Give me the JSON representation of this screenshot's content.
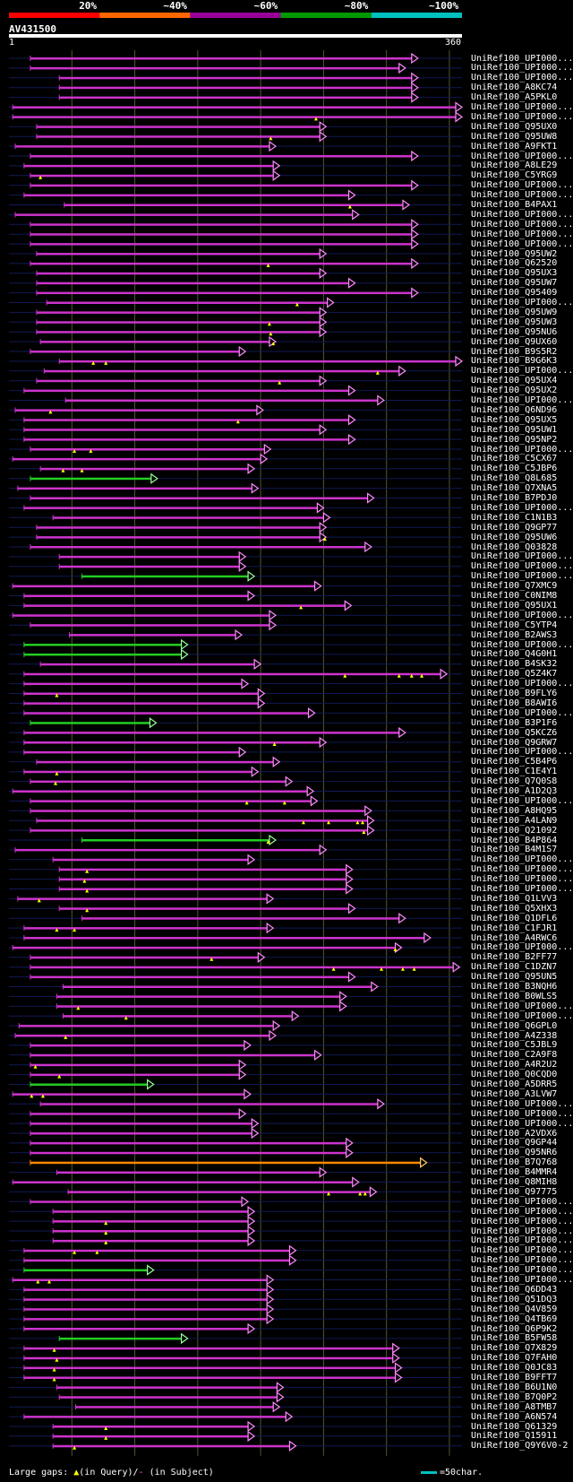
{
  "query": {
    "name": "AV431500",
    "start": "1",
    "end": "360"
  },
  "scale": [
    {
      "label": "20%",
      "color": "#ff0000"
    },
    {
      "label": "~40%",
      "color": "#ff6600"
    },
    {
      "label": "~60%",
      "color": "#990099"
    },
    {
      "label": "~80%",
      "color": "#009900"
    },
    {
      "label": "~100%",
      "color": "#00c0c0"
    }
  ],
  "footer": {
    "left_prefix": "Large gaps: ",
    "query_marker": "▲",
    "query_text": "(in Query)/",
    "subject_marker": "-",
    "subject_text": " (in Subject)",
    "legend_text": "=50char."
  },
  "hits": [
    {
      "id": "UniRef100_UPI000...",
      "s": 17,
      "e": 325,
      "c": "m",
      "tr": []
    },
    {
      "id": "UniRef100_UPI000...",
      "s": 17,
      "e": 315,
      "c": "m",
      "tr": []
    },
    {
      "id": "UniRef100_UPI000...",
      "s": 40,
      "e": 325,
      "c": "m",
      "tr": []
    },
    {
      "id": "UniRef100_A8KC74",
      "s": 40,
      "e": 325,
      "c": "m",
      "tr": []
    },
    {
      "id": "UniRef100_A5PKL0",
      "s": 40,
      "e": 325,
      "c": "m",
      "tr": []
    },
    {
      "id": "UniRef100_UPI000...",
      "s": 3,
      "e": 360,
      "c": "m",
      "tr": []
    },
    {
      "id": "UniRef100_UPI000...",
      "s": 3,
      "e": 360,
      "c": "m",
      "tr": [
        244
      ]
    },
    {
      "id": "UniRef100_Q95UX0",
      "s": 22,
      "e": 252,
      "c": "m",
      "tr": []
    },
    {
      "id": "UniRef100_Q95UW8",
      "s": 22,
      "e": 252,
      "c": "m",
      "tr": [
        208
      ]
    },
    {
      "id": "UniRef100_A9FKT1",
      "s": 5,
      "e": 212,
      "c": "m",
      "tr": []
    },
    {
      "id": "UniRef100_UPI000...",
      "s": 17,
      "e": 325,
      "c": "m",
      "tr": []
    },
    {
      "id": "UniRef100_A8LE29",
      "s": 12,
      "e": 215,
      "c": "m",
      "tr": []
    },
    {
      "id": "UniRef100_C5YRG9",
      "s": 17,
      "e": 215,
      "c": "m",
      "tr": [
        25
      ]
    },
    {
      "id": "UniRef100_UPI000...",
      "s": 17,
      "e": 325,
      "c": "m",
      "tr": []
    },
    {
      "id": "UniRef100_UPI000...",
      "s": 12,
      "e": 275,
      "c": "m",
      "tr": []
    },
    {
      "id": "UniRef100_B4PAX1",
      "s": 44,
      "e": 318,
      "c": "m",
      "tr": [
        271
      ]
    },
    {
      "id": "UniRef100_UPI000...",
      "s": 5,
      "e": 278,
      "c": "m",
      "tr": []
    },
    {
      "id": "UniRef100_UPI000...",
      "s": 17,
      "e": 325,
      "c": "m",
      "tr": []
    },
    {
      "id": "UniRef100_UPI000...",
      "s": 17,
      "e": 325,
      "c": "m",
      "tr": []
    },
    {
      "id": "UniRef100_UPI000...",
      "s": 17,
      "e": 325,
      "c": "m",
      "tr": []
    },
    {
      "id": "UniRef100_Q95UW2",
      "s": 22,
      "e": 252,
      "c": "m",
      "tr": []
    },
    {
      "id": "UniRef100_Q62520",
      "s": 17,
      "e": 325,
      "c": "m",
      "tr": [
        206
      ]
    },
    {
      "id": "UniRef100_Q95UX3",
      "s": 22,
      "e": 252,
      "c": "m",
      "tr": []
    },
    {
      "id": "UniRef100_Q95UW7",
      "s": 22,
      "e": 275,
      "c": "m",
      "tr": []
    },
    {
      "id": "UniRef100_Q95409",
      "s": 22,
      "e": 325,
      "c": "m",
      "tr": []
    },
    {
      "id": "UniRef100_UPI000...",
      "s": 30,
      "e": 258,
      "c": "m",
      "tr": [
        229
      ]
    },
    {
      "id": "UniRef100_Q95UW9",
      "s": 22,
      "e": 252,
      "c": "m",
      "tr": []
    },
    {
      "id": "UniRef100_Q95UW3",
      "s": 22,
      "e": 252,
      "c": "m",
      "tr": [
        207
      ]
    },
    {
      "id": "UniRef100_Q95NU6",
      "s": 22,
      "e": 252,
      "c": "m",
      "tr": [
        208
      ]
    },
    {
      "id": "UniRef100_Q9UX60",
      "s": 25,
      "e": 212,
      "c": "m",
      "tr": [
        210
      ]
    },
    {
      "id": "UniRef100_B9S5R2",
      "s": 17,
      "e": 188,
      "c": "m",
      "tr": []
    },
    {
      "id": "UniRef100_B9G6K3",
      "s": 40,
      "e": 360,
      "c": "m",
      "tr": [
        67,
        77
      ]
    },
    {
      "id": "UniRef100_UPI000...",
      "s": 28,
      "e": 315,
      "c": "m",
      "tr": [
        293
      ]
    },
    {
      "id": "UniRef100_Q95UX4",
      "s": 22,
      "e": 252,
      "c": "m",
      "tr": [
        215
      ]
    },
    {
      "id": "UniRef100_Q95UX2",
      "s": 12,
      "e": 275,
      "c": "m",
      "tr": []
    },
    {
      "id": "UniRef100_UPI000...",
      "s": 45,
      "e": 298,
      "c": "m",
      "tr": []
    },
    {
      "id": "UniRef100_Q6ND96",
      "s": 5,
      "e": 202,
      "c": "m",
      "tr": [
        33
      ]
    },
    {
      "id": "UniRef100_Q95UX5",
      "s": 12,
      "e": 275,
      "c": "m",
      "tr": [
        182
      ]
    },
    {
      "id": "UniRef100_Q95UW1",
      "s": 12,
      "e": 252,
      "c": "m",
      "tr": []
    },
    {
      "id": "UniRef100_Q95NP2",
      "s": 12,
      "e": 275,
      "c": "m",
      "tr": []
    },
    {
      "id": "UniRef100_UPI000...",
      "s": 17,
      "e": 208,
      "c": "m",
      "tr": [
        52,
        65
      ]
    },
    {
      "id": "UniRef100_C5CX67",
      "s": 3,
      "e": 205,
      "c": "m",
      "tr": []
    },
    {
      "id": "UniRef100_C5JBP6",
      "s": 25,
      "e": 195,
      "c": "m",
      "tr": [
        43,
        58
      ]
    },
    {
      "id": "UniRef100_Q8L685",
      "s": 17,
      "e": 118,
      "c": "g",
      "tr": []
    },
    {
      "id": "UniRef100_Q7XNA5",
      "s": 7,
      "e": 198,
      "c": "m",
      "tr": []
    },
    {
      "id": "UniRef100_B7PDJ0",
      "s": 17,
      "e": 290,
      "c": "m",
      "tr": []
    },
    {
      "id": "UniRef100_UPI000...",
      "s": 12,
      "e": 250,
      "c": "m",
      "tr": []
    },
    {
      "id": "UniRef100_C1N1B3",
      "s": 35,
      "e": 255,
      "c": "m",
      "tr": []
    },
    {
      "id": "UniRef100_Q9GP77",
      "s": 22,
      "e": 252,
      "c": "m",
      "tr": []
    },
    {
      "id": "UniRef100_Q95UW6",
      "s": 22,
      "e": 252,
      "c": "m",
      "tr": [
        251
      ]
    },
    {
      "id": "UniRef100_Q03828",
      "s": 17,
      "e": 288,
      "c": "m",
      "tr": []
    },
    {
      "id": "UniRef100_UPI000...",
      "s": 40,
      "e": 188,
      "c": "m",
      "tr": []
    },
    {
      "id": "UniRef100_UPI000...",
      "s": 40,
      "e": 188,
      "c": "m",
      "tr": []
    },
    {
      "id": "UniRef100_UPI000...",
      "s": 58,
      "e": 195,
      "c": "g",
      "tr": []
    },
    {
      "id": "UniRef100_Q7XMC9",
      "s": 3,
      "e": 248,
      "c": "m",
      "tr": []
    },
    {
      "id": "UniRef100_C0NIM8",
      "s": 12,
      "e": 195,
      "c": "m",
      "tr": []
    },
    {
      "id": "UniRef100_Q95UX1",
      "s": 12,
      "e": 272,
      "c": "m",
      "tr": [
        232
      ]
    },
    {
      "id": "UniRef100_UPI000...",
      "s": 3,
      "e": 212,
      "c": "m",
      "tr": []
    },
    {
      "id": "UniRef100_C5YTP4",
      "s": 17,
      "e": 212,
      "c": "m",
      "tr": []
    },
    {
      "id": "UniRef100_B2AWS3",
      "s": 48,
      "e": 185,
      "c": "m",
      "tr": []
    },
    {
      "id": "UniRef100_UPI000...",
      "s": 12,
      "e": 142,
      "c": "g",
      "tr": []
    },
    {
      "id": "UniRef100_Q4G0H1",
      "s": 12,
      "e": 142,
      "c": "g",
      "tr": []
    },
    {
      "id": "UniRef100_B4SK32",
      "s": 25,
      "e": 200,
      "c": "m",
      "tr": []
    },
    {
      "id": "UniRef100_Q5Z4K7",
      "s": 12,
      "e": 348,
      "c": "m",
      "tr": [
        267,
        310,
        320,
        328
      ]
    },
    {
      "id": "UniRef100_UPI000...",
      "s": 12,
      "e": 190,
      "c": "m",
      "tr": []
    },
    {
      "id": "UniRef100_B9FLY6",
      "s": 12,
      "e": 203,
      "c": "m",
      "tr": [
        38
      ]
    },
    {
      "id": "UniRef100_B8AWI6",
      "s": 12,
      "e": 203,
      "c": "m",
      "tr": []
    },
    {
      "id": "UniRef100_UPI000...",
      "s": 12,
      "e": 243,
      "c": "m",
      "tr": []
    },
    {
      "id": "UniRef100_B3P1F6",
      "s": 17,
      "e": 117,
      "c": "g",
      "tr": []
    },
    {
      "id": "UniRef100_Q5KCZ6",
      "s": 12,
      "e": 315,
      "c": "m",
      "tr": []
    },
    {
      "id": "UniRef100_Q9GRW7",
      "s": 12,
      "e": 252,
      "c": "m",
      "tr": [
        211
      ]
    },
    {
      "id": "UniRef100_UPI000...",
      "s": 12,
      "e": 188,
      "c": "m",
      "tr": []
    },
    {
      "id": "UniRef100_C5B4P6",
      "s": 22,
      "e": 215,
      "c": "m",
      "tr": []
    },
    {
      "id": "UniRef100_C1E4Y1",
      "s": 12,
      "e": 198,
      "c": "m",
      "tr": [
        38
      ]
    },
    {
      "id": "UniRef100_Q7Q0S8",
      "s": 17,
      "e": 225,
      "c": "m",
      "tr": [
        37
      ]
    },
    {
      "id": "UniRef100_A1D2Q3",
      "s": 3,
      "e": 242,
      "c": "m",
      "tr": []
    },
    {
      "id": "UniRef100_UPI000...",
      "s": 17,
      "e": 245,
      "c": "m",
      "tr": [
        189,
        219
      ]
    },
    {
      "id": "UniRef100_A8HQ95",
      "s": 17,
      "e": 288,
      "c": "m",
      "tr": []
    },
    {
      "id": "UniRef100_A4LAN9",
      "s": 22,
      "e": 290,
      "c": "m",
      "tr": [
        234,
        254,
        277,
        281
      ]
    },
    {
      "id": "UniRef100_Q21092",
      "s": 17,
      "e": 290,
      "c": "m",
      "tr": [
        282
      ]
    },
    {
      "id": "UniRef100_B4P864",
      "s": 58,
      "e": 212,
      "c": "g",
      "tr": [
        206
      ]
    },
    {
      "id": "UniRef100_B4M1S7",
      "s": 5,
      "e": 252,
      "c": "m",
      "tr": []
    },
    {
      "id": "UniRef100_UPI000...",
      "s": 35,
      "e": 195,
      "c": "m",
      "tr": []
    },
    {
      "id": "UniRef100_UPI000...",
      "s": 40,
      "e": 273,
      "c": "m",
      "tr": [
        62
      ]
    },
    {
      "id": "UniRef100_UPI000...",
      "s": 40,
      "e": 273,
      "c": "m",
      "tr": [
        60
      ]
    },
    {
      "id": "UniRef100_UPI000...",
      "s": 40,
      "e": 273,
      "c": "m",
      "tr": [
        62
      ]
    },
    {
      "id": "UniRef100_Q1LVV3",
      "s": 7,
      "e": 210,
      "c": "m",
      "tr": [
        24
      ]
    },
    {
      "id": "UniRef100_Q5XHX3",
      "s": 40,
      "e": 275,
      "c": "m",
      "tr": [
        62
      ]
    },
    {
      "id": "UniRef100_Q1DFL6",
      "s": 58,
      "e": 315,
      "c": "m",
      "tr": []
    },
    {
      "id": "UniRef100_C1FJR1",
      "s": 12,
      "e": 210,
      "c": "m",
      "tr": [
        38,
        52
      ]
    },
    {
      "id": "UniRef100_A4RWC6",
      "s": 12,
      "e": 335,
      "c": "m",
      "tr": []
    },
    {
      "id": "UniRef100_UPI000...",
      "s": 3,
      "e": 312,
      "c": "m",
      "tr": [
        307
      ]
    },
    {
      "id": "UniRef100_B2FF77",
      "s": 17,
      "e": 203,
      "c": "m",
      "tr": [
        161
      ]
    },
    {
      "id": "UniRef100_C1DZN7",
      "s": 17,
      "e": 358,
      "c": "m",
      "tr": [
        258,
        296,
        313,
        322
      ]
    },
    {
      "id": "UniRef100_Q95UN5",
      "s": 17,
      "e": 275,
      "c": "m",
      "tr": []
    },
    {
      "id": "UniRef100_B3NQH6",
      "s": 43,
      "e": 293,
      "c": "m",
      "tr": []
    },
    {
      "id": "UniRef100_B0WLS5",
      "s": 38,
      "e": 268,
      "c": "m",
      "tr": []
    },
    {
      "id": "UniRef100_UPI000...",
      "s": 38,
      "e": 268,
      "c": "m",
      "tr": [
        55
      ]
    },
    {
      "id": "UniRef100_UPI000...",
      "s": 43,
      "e": 230,
      "c": "m",
      "tr": [
        93
      ]
    },
    {
      "id": "UniRef100_Q6GPL0",
      "s": 8,
      "e": 215,
      "c": "m",
      "tr": []
    },
    {
      "id": "UniRef100_A4Z338",
      "s": 5,
      "e": 212,
      "c": "m",
      "tr": [
        45
      ]
    },
    {
      "id": "UniRef100_C5JBL9",
      "s": 17,
      "e": 192,
      "c": "m",
      "tr": []
    },
    {
      "id": "UniRef100_C2A9F8",
      "s": 17,
      "e": 248,
      "c": "m",
      "tr": []
    },
    {
      "id": "UniRef100_A4R2U2",
      "s": 17,
      "e": 188,
      "c": "m",
      "tr": [
        21
      ]
    },
    {
      "id": "UniRef100_Q0CQD0",
      "s": 17,
      "e": 188,
      "c": "m",
      "tr": [
        40
      ]
    },
    {
      "id": "UniRef100_A5DRR5",
      "s": 17,
      "e": 115,
      "c": "g",
      "tr": []
    },
    {
      "id": "UniRef100_A3LVW7",
      "s": 3,
      "e": 192,
      "c": "m",
      "tr": [
        18,
        27
      ]
    },
    {
      "id": "UniRef100_UPI000...",
      "s": 25,
      "e": 298,
      "c": "m",
      "tr": []
    },
    {
      "id": "UniRef100_UPI000...",
      "s": 17,
      "e": 188,
      "c": "m",
      "tr": []
    },
    {
      "id": "UniRef100_UPI000...",
      "s": 17,
      "e": 198,
      "c": "m",
      "tr": []
    },
    {
      "id": "UniRef100_A2VDX6",
      "s": 17,
      "e": 198,
      "c": "m",
      "tr": []
    },
    {
      "id": "UniRef100_Q9GP44",
      "s": 17,
      "e": 273,
      "c": "m",
      "tr": []
    },
    {
      "id": "UniRef100_Q95NR6",
      "s": 17,
      "e": 273,
      "c": "m",
      "tr": []
    },
    {
      "id": "UniRef100_B7Q768",
      "s": 17,
      "e": 332,
      "c": "o",
      "tr": []
    },
    {
      "id": "UniRef100_B4MMR4",
      "s": 38,
      "e": 252,
      "c": "m",
      "tr": []
    },
    {
      "id": "UniRef100_Q8MIH8",
      "s": 3,
      "e": 278,
      "c": "m",
      "tr": []
    },
    {
      "id": "UniRef100_Q97775",
      "s": 47,
      "e": 292,
      "c": "m",
      "tr": [
        254,
        279,
        283
      ]
    },
    {
      "id": "UniRef100_UPI000...",
      "s": 17,
      "e": 190,
      "c": "m",
      "tr": []
    },
    {
      "id": "UniRef100_UPI000...",
      "s": 35,
      "e": 195,
      "c": "m",
      "tr": []
    },
    {
      "id": "UniRef100_UPI000...",
      "s": 35,
      "e": 195,
      "c": "m",
      "tr": [
        77
      ]
    },
    {
      "id": "UniRef100_UPI000...",
      "s": 35,
      "e": 195,
      "c": "m",
      "tr": [
        77
      ]
    },
    {
      "id": "UniRef100_UPI000...",
      "s": 35,
      "e": 195,
      "c": "m",
      "tr": [
        77
      ]
    },
    {
      "id": "UniRef100_UPI000...",
      "s": 12,
      "e": 228,
      "c": "m",
      "tr": [
        52,
        70
      ]
    },
    {
      "id": "UniRef100_UPI000...",
      "s": 12,
      "e": 228,
      "c": "m",
      "tr": []
    },
    {
      "id": "UniRef100_UPI000...",
      "s": 12,
      "e": 115,
      "c": "g",
      "tr": []
    },
    {
      "id": "UniRef100_UPI000...",
      "s": 3,
      "e": 210,
      "c": "m",
      "tr": [
        23,
        32
      ]
    },
    {
      "id": "UniRef100_Q6DD43",
      "s": 12,
      "e": 210,
      "c": "m",
      "tr": []
    },
    {
      "id": "UniRef100_Q51DQ3",
      "s": 12,
      "e": 210,
      "c": "m",
      "tr": []
    },
    {
      "id": "UniRef100_Q4V859",
      "s": 12,
      "e": 210,
      "c": "m",
      "tr": []
    },
    {
      "id": "UniRef100_Q4TB69",
      "s": 12,
      "e": 210,
      "c": "m",
      "tr": []
    },
    {
      "id": "UniRef100_Q6P9K2",
      "s": 12,
      "e": 195,
      "c": "m",
      "tr": []
    },
    {
      "id": "UniRef100_B5FW58",
      "s": 40,
      "e": 142,
      "c": "g",
      "tr": []
    },
    {
      "id": "UniRef100_Q7X829",
      "s": 12,
      "e": 310,
      "c": "m",
      "tr": [
        36
      ]
    },
    {
      "id": "UniRef100_Q7FAH0",
      "s": 12,
      "e": 310,
      "c": "m",
      "tr": [
        38
      ]
    },
    {
      "id": "UniRef100_Q0JC83",
      "s": 12,
      "e": 312,
      "c": "m",
      "tr": [
        36
      ]
    },
    {
      "id": "UniRef100_B9FFT7",
      "s": 12,
      "e": 312,
      "c": "m",
      "tr": [
        36
      ]
    },
    {
      "id": "UniRef100_B6U1N0",
      "s": 38,
      "e": 218,
      "c": "m",
      "tr": []
    },
    {
      "id": "UniRef100_B7Q0P2",
      "s": 40,
      "e": 218,
      "c": "m",
      "tr": []
    },
    {
      "id": "UniRef100_A8TMB7",
      "s": 53,
      "e": 215,
      "c": "m",
      "tr": []
    },
    {
      "id": "UniRef100_A6N574",
      "s": 12,
      "e": 225,
      "c": "m",
      "tr": []
    },
    {
      "id": "UniRef100_Q61329",
      "s": 35,
      "e": 195,
      "c": "m",
      "tr": [
        77
      ]
    },
    {
      "id": "UniRef100_Q15911",
      "s": 35,
      "e": 195,
      "c": "m",
      "tr": [
        77
      ]
    },
    {
      "id": "UniRef100_Q9Y6V0-2",
      "s": 35,
      "e": 228,
      "c": "m",
      "tr": [
        52
      ]
    }
  ]
}
